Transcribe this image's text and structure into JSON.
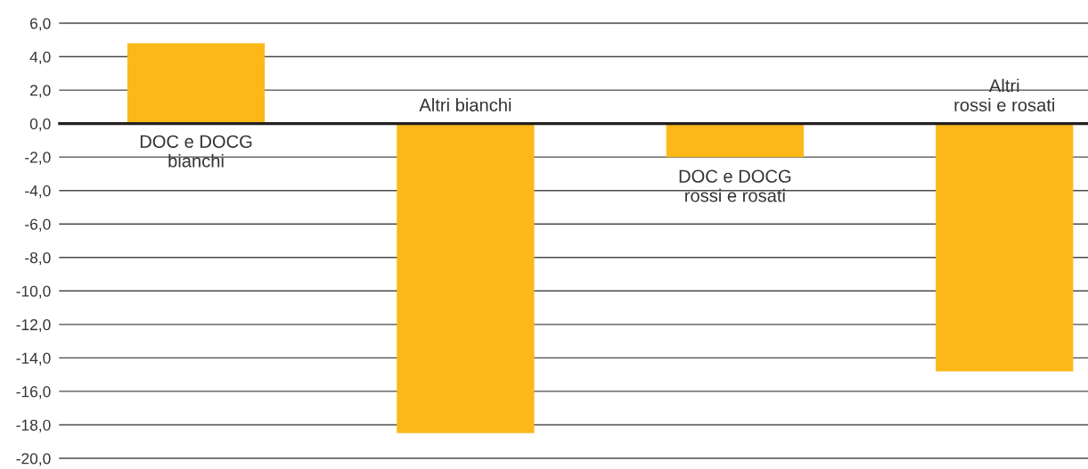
{
  "chart_data": {
    "type": "bar",
    "categories": [
      "DOC e DOCG\nbianchi",
      "Altri bianchi",
      "DOC e DOCG\nrossi e rosati",
      "Altri\nrossi e rosati"
    ],
    "values": [
      4.8,
      -18.5,
      -2.0,
      -14.8
    ],
    "color": "#fbb818",
    "ylim": [
      -20,
      6
    ],
    "yticks": [
      {
        "value": 6,
        "label": "6,0"
      },
      {
        "value": 4,
        "label": "4,0"
      },
      {
        "value": 2,
        "label": "2,0"
      },
      {
        "value": 0,
        "label": "0,0"
      },
      {
        "value": -2,
        "label": "-2,0"
      },
      {
        "value": -4,
        "label": "-4,0"
      },
      {
        "value": -6,
        "label": "-6,0"
      },
      {
        "value": -8,
        "label": "-8,0"
      },
      {
        "value": -10,
        "label": "-10,0"
      },
      {
        "value": -12,
        "label": "-12,0"
      },
      {
        "value": -14,
        "label": "-14,0"
      },
      {
        "value": -16,
        "label": "-16,0"
      },
      {
        "value": -18,
        "label": "-18,0"
      },
      {
        "value": -20,
        "label": "-20,0"
      }
    ],
    "grid": "y",
    "tick_labels": "y"
  }
}
